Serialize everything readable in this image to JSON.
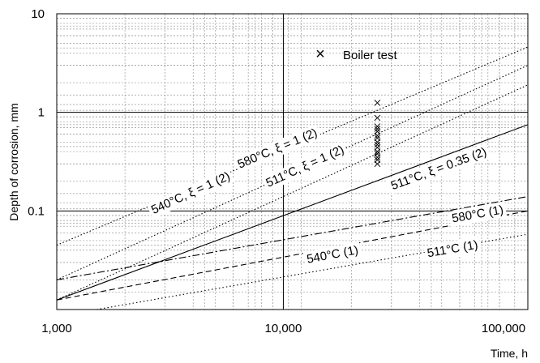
{
  "chart_data": {
    "type": "line",
    "title": "",
    "xlabel": "Time, h",
    "ylabel": "Depth of corrosion, mm",
    "x_scale": "log",
    "y_scale": "log",
    "xlim": [
      1000,
      120000
    ],
    "ylim": [
      0.01,
      10
    ],
    "grid": true,
    "x_ticks": [
      {
        "value": 1000,
        "label": "1,000"
      },
      {
        "value": 10000,
        "label": "10,000"
      },
      {
        "value": 100000,
        "label": "100,000"
      }
    ],
    "y_ticks": [
      {
        "value": 10,
        "label": "10"
      },
      {
        "value": 1,
        "label": "1"
      },
      {
        "value": 0.1,
        "label": "0.1"
      }
    ],
    "legend": {
      "placement": "top-center",
      "entries": [
        {
          "label": "Boiler test",
          "marker": "x"
        }
      ]
    },
    "series": [
      {
        "name": "580°C, ξ = 1 (2)",
        "style": "dotted",
        "x": [
          1000,
          120000
        ],
        "y": [
          0.045,
          4.6
        ]
      },
      {
        "name": "540°C, ξ = 1 (2)",
        "style": "dotted",
        "x": [
          1000,
          120000
        ],
        "y": [
          0.02,
          3.0
        ]
      },
      {
        "name": "511°C, ξ = 1 (2)",
        "style": "dotted",
        "x": [
          1000,
          120000
        ],
        "y": [
          0.0125,
          1.9
        ]
      },
      {
        "name": "511°C, ξ = 0.35 (2)",
        "style": "solid",
        "x": [
          1000,
          120000
        ],
        "y": [
          0.0125,
          0.75
        ]
      },
      {
        "name": "580°C (1)",
        "style": "dash-dot",
        "x": [
          1000,
          120000
        ],
        "y": [
          0.02,
          0.14
        ]
      },
      {
        "name": "540°C (1)",
        "style": "dashed",
        "x": [
          1000,
          120000
        ],
        "y": [
          0.0125,
          0.1
        ]
      },
      {
        "name": "511°C (1)",
        "style": "dotted-fine",
        "x": [
          1500,
          120000
        ],
        "y": [
          0.01,
          0.058
        ]
      }
    ],
    "scatter": {
      "name": "Boiler test",
      "x": [
        26000,
        26000,
        26000,
        26000,
        26000,
        26000,
        26000,
        26000,
        26000,
        26000,
        26000,
        26000,
        26000,
        26000,
        26000
      ],
      "y": [
        1.25,
        0.88,
        0.72,
        0.68,
        0.64,
        0.58,
        0.55,
        0.5,
        0.47,
        0.44,
        0.4,
        0.38,
        0.35,
        0.33,
        0.3
      ]
    },
    "colors": {
      "lines": "#000000",
      "grid_major": "#000000",
      "grid_minor": "#9a9a9a",
      "background": "#ffffff"
    }
  }
}
